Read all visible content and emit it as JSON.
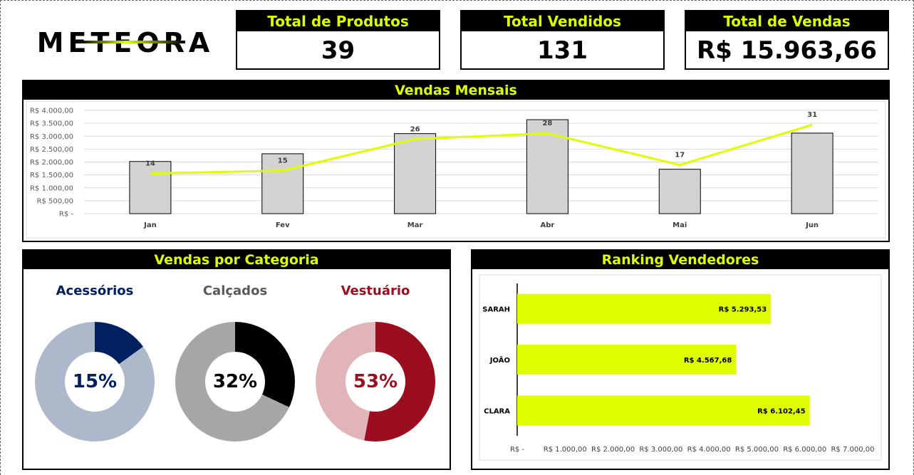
{
  "brand": {
    "logo_text": "METEORA"
  },
  "kpis": [
    {
      "title": "Total de Produtos",
      "value": "39"
    },
    {
      "title": "Total Vendidos",
      "value": "131"
    },
    {
      "title": "Total de Vendas",
      "value": "R$ 15.963,66"
    }
  ],
  "colors": {
    "accent": "#dfff00",
    "bar_gray": "#d3d3d3",
    "navy": "#002060",
    "dark_red": "#9b0e1f"
  },
  "monthly": {
    "title": "Vendas Mensais",
    "chart_data": {
      "type": "bar",
      "categories": [
        "Jan",
        "Fev",
        "Mar",
        "Abr",
        "Mai",
        "Jun"
      ],
      "series": [
        {
          "values": [
            2020,
            2320,
            3100,
            3640,
            1720,
            3120
          ]
        },
        {
          "values": [
            14,
            15,
            26,
            28,
            17,
            31
          ]
        }
      ],
      "yticks": [
        "R$ 4.000,00",
        "R$ 3.500,00",
        "R$ 3.000,00",
        "R$ 2.500,00",
        "R$ 2.000,00",
        "R$ 1.500,00",
        "R$ 1.000,00",
        "R$ 500,00",
        "R$ -"
      ],
      "ylim": [
        0,
        4000
      ],
      "grid": true
    }
  },
  "categories": {
    "title": "Vendas por Categoria",
    "items": [
      {
        "name": "Acessórios",
        "pct_label": "15%",
        "pct": 15,
        "color": "#002060",
        "bg": "#adb9ca",
        "label_color": "#002060"
      },
      {
        "name": "Calçados",
        "pct_label": "32%",
        "pct": 32,
        "color": "#000000",
        "bg": "#a6a6a6",
        "label_color": "#595959"
      },
      {
        "name": "Vestuário",
        "pct_label": "53%",
        "pct": 53,
        "color": "#9b0e1f",
        "bg": "#e0b4b9",
        "label_color": "#9b0e1f"
      }
    ]
  },
  "ranking": {
    "title": "Ranking Vendedores",
    "chart_data": {
      "type": "bar",
      "orientation": "horizontal",
      "categories": [
        "SARAH",
        "JOÃO",
        "CLARA"
      ],
      "values": [
        5293.53,
        4567.68,
        6102.45
      ],
      "value_labels": [
        "R$ 5.293,53",
        "R$ 4.567,68",
        "R$ 6.102,45"
      ],
      "xticks": [
        "R$ -",
        "R$ 1.000,00",
        "R$ 2.000,00",
        "R$ 3.000,00",
        "R$ 4.000,00",
        "R$ 5.000,00",
        "R$ 6.000,00",
        "R$ 7.000,00"
      ],
      "xlim": [
        0,
        7000
      ]
    }
  }
}
